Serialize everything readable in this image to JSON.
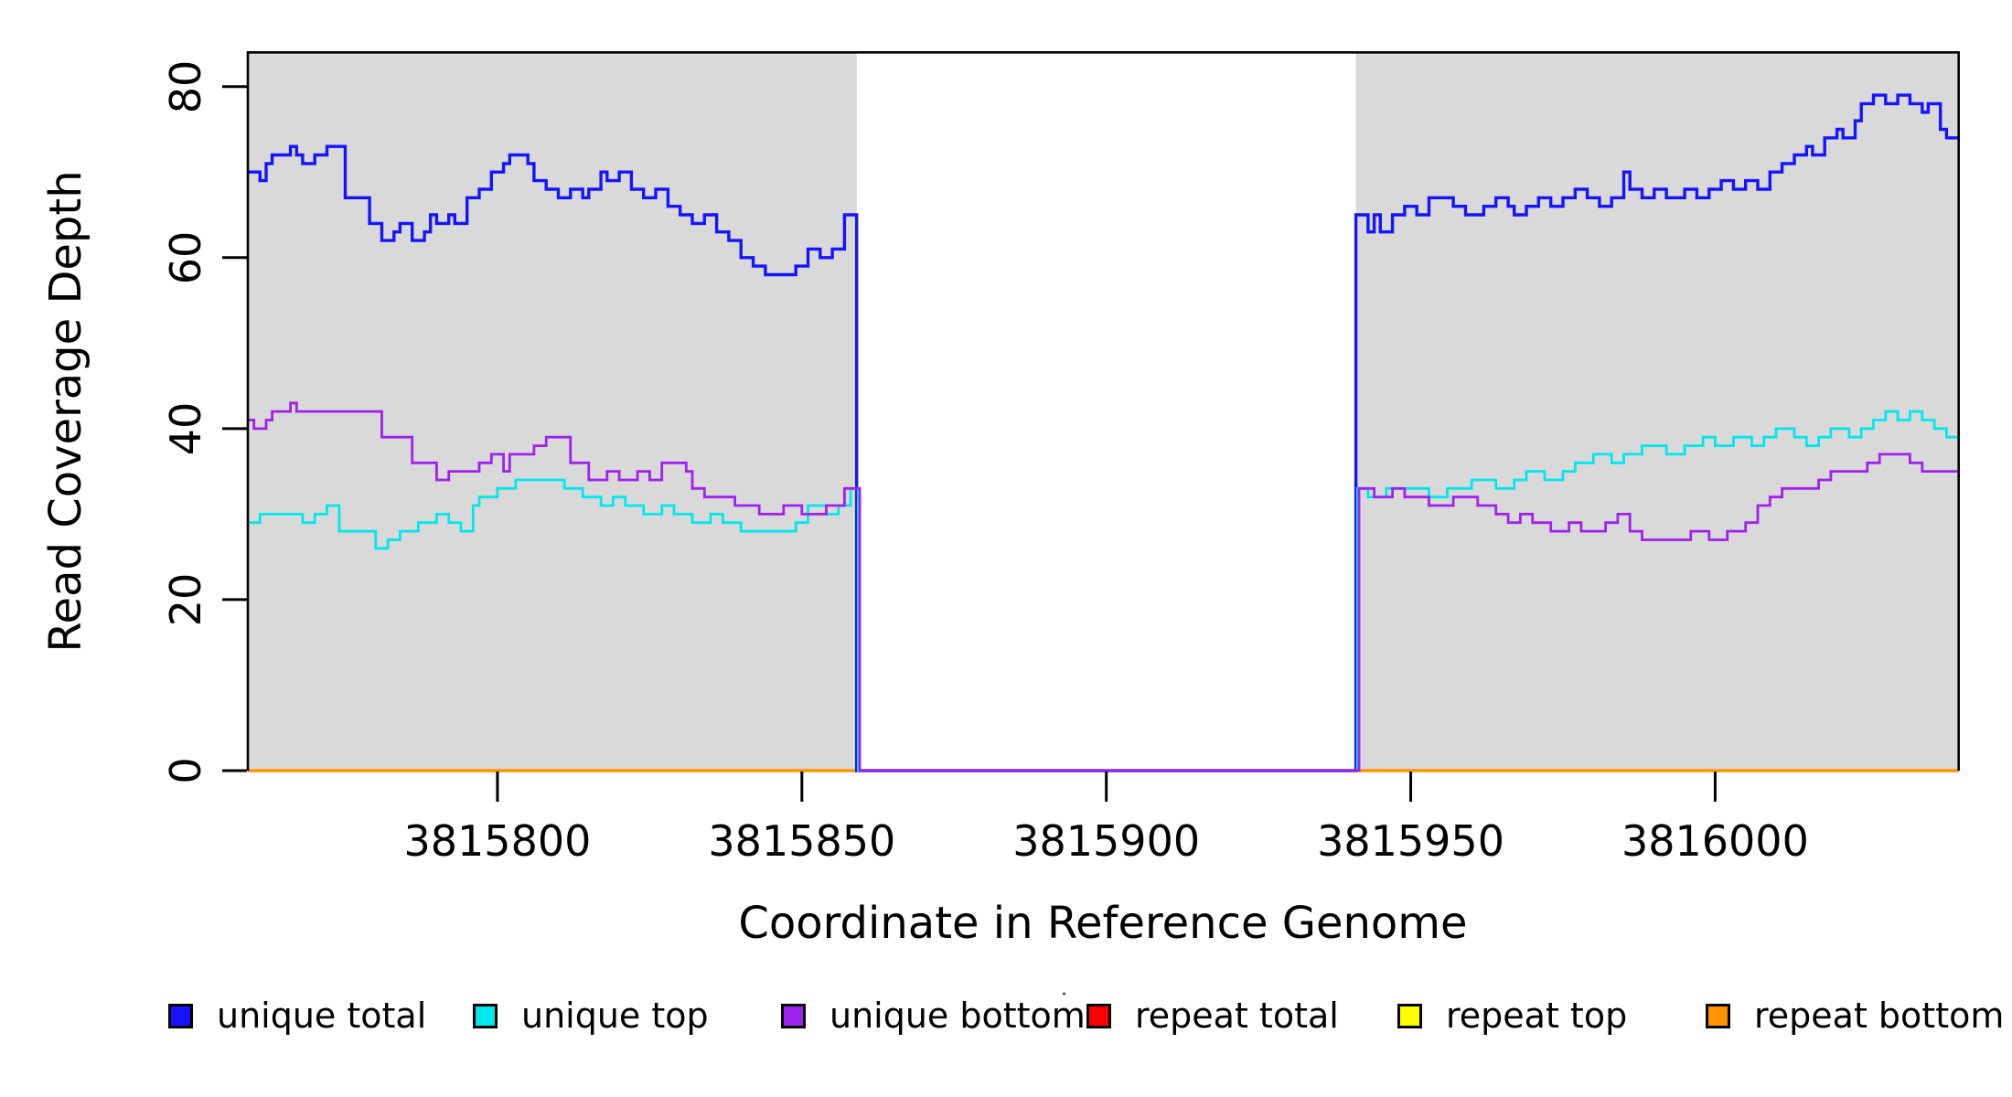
{
  "chart_data": {
    "type": "line",
    "title": "",
    "xlabel": "Coordinate in Reference Genome",
    "ylabel": "Read Coverage Depth",
    "xlim": [
      3815759,
      3816040
    ],
    "ylim": [
      0,
      84
    ],
    "xticks": [
      3815800,
      3815850,
      3815900,
      3815950,
      3816000
    ],
    "yticks": [
      0,
      20,
      40,
      60,
      80
    ],
    "grid": false,
    "legend_position": "bottom",
    "background_color": "#ffffff",
    "shaded_region_color": "#d9d9d9",
    "shaded_regions": [
      {
        "x0": 3815759,
        "x1": 3815859
      },
      {
        "x0": 3815941,
        "x1": 3816040
      }
    ],
    "gap_region": {
      "x0": 3815859,
      "x1": 3815941,
      "note": "all unique coverage drops to 0"
    },
    "series": [
      {
        "name": "repeat total",
        "color": "#ff0000",
        "width": 2.5,
        "steps": [
          [
            3815759,
            0
          ]
        ]
      },
      {
        "name": "repeat top",
        "color": "#ffff00",
        "width": 2.5,
        "steps": [
          [
            3815759,
            0
          ]
        ]
      },
      {
        "name": "repeat bottom",
        "color": "#ff9400",
        "width": 3.4,
        "steps": [
          [
            3815759,
            0
          ]
        ]
      },
      {
        "name": "unique total",
        "color": "#1414ff",
        "width": 3.4,
        "steps": [
          [
            3815759,
            70
          ],
          [
            3815761,
            69
          ],
          [
            3815762,
            71
          ],
          [
            3815763,
            72
          ],
          [
            3815766,
            73
          ],
          [
            3815767,
            72
          ],
          [
            3815768,
            71
          ],
          [
            3815770,
            72
          ],
          [
            3815772,
            73
          ],
          [
            3815775,
            67
          ],
          [
            3815779,
            64
          ],
          [
            3815781,
            62
          ],
          [
            3815783,
            63
          ],
          [
            3815784,
            64
          ],
          [
            3815786,
            62
          ],
          [
            3815788,
            63
          ],
          [
            3815789,
            65
          ],
          [
            3815790,
            64
          ],
          [
            3815792,
            65
          ],
          [
            3815793,
            64
          ],
          [
            3815795,
            67
          ],
          [
            3815797,
            68
          ],
          [
            3815799,
            70
          ],
          [
            3815801,
            71
          ],
          [
            3815802,
            72
          ],
          [
            3815805,
            71
          ],
          [
            3815806,
            69
          ],
          [
            3815808,
            68
          ],
          [
            3815810,
            67
          ],
          [
            3815812,
            68
          ],
          [
            3815814,
            67
          ],
          [
            3815815,
            68
          ],
          [
            3815817,
            70
          ],
          [
            3815818,
            69
          ],
          [
            3815820,
            70
          ],
          [
            3815822,
            68
          ],
          [
            3815824,
            67
          ],
          [
            3815826,
            68
          ],
          [
            3815828,
            66
          ],
          [
            3815830,
            65
          ],
          [
            3815832,
            64
          ],
          [
            3815834,
            65
          ],
          [
            3815836,
            63
          ],
          [
            3815838,
            62
          ],
          [
            3815840,
            60
          ],
          [
            3815842,
            59
          ],
          [
            3815844,
            58
          ],
          [
            3815849,
            59
          ],
          [
            3815851,
            61
          ],
          [
            3815853,
            60
          ],
          [
            3815855,
            61
          ],
          [
            3815857,
            65
          ],
          [
            3815859,
            0
          ],
          [
            3815941,
            65
          ],
          [
            3815943,
            63
          ],
          [
            3815944,
            65
          ],
          [
            3815945,
            63
          ],
          [
            3815947,
            65
          ],
          [
            3815949,
            66
          ],
          [
            3815951,
            65
          ],
          [
            3815953,
            67
          ],
          [
            3815957,
            66
          ],
          [
            3815959,
            65
          ],
          [
            3815962,
            66
          ],
          [
            3815964,
            67
          ],
          [
            3815966,
            66
          ],
          [
            3815967,
            65
          ],
          [
            3815969,
            66
          ],
          [
            3815971,
            67
          ],
          [
            3815973,
            66
          ],
          [
            3815975,
            67
          ],
          [
            3815977,
            68
          ],
          [
            3815979,
            67
          ],
          [
            3815981,
            66
          ],
          [
            3815983,
            67
          ],
          [
            3815985,
            70
          ],
          [
            3815986,
            68
          ],
          [
            3815988,
            67
          ],
          [
            3815990,
            68
          ],
          [
            3815992,
            67
          ],
          [
            3815995,
            68
          ],
          [
            3815997,
            67
          ],
          [
            3815999,
            68
          ],
          [
            3816001,
            69
          ],
          [
            3816003,
            68
          ],
          [
            3816005,
            69
          ],
          [
            3816007,
            68
          ],
          [
            3816009,
            70
          ],
          [
            3816011,
            71
          ],
          [
            3816013,
            72
          ],
          [
            3816015,
            73
          ],
          [
            3816016,
            72
          ],
          [
            3816018,
            74
          ],
          [
            3816020,
            75
          ],
          [
            3816021,
            74
          ],
          [
            3816023,
            76
          ],
          [
            3816024,
            78
          ],
          [
            3816026,
            79
          ],
          [
            3816028,
            78
          ],
          [
            3816030,
            79
          ],
          [
            3816032,
            78
          ],
          [
            3816034,
            77
          ],
          [
            3816035,
            78
          ],
          [
            3816037,
            75
          ],
          [
            3816038,
            74
          ]
        ]
      },
      {
        "name": "unique top",
        "color": "#00e8ee",
        "width": 2.8,
        "steps": [
          [
            3815759,
            29
          ],
          [
            3815761,
            30
          ],
          [
            3815768,
            29
          ],
          [
            3815770,
            30
          ],
          [
            3815772,
            31
          ],
          [
            3815774,
            28
          ],
          [
            3815780,
            26
          ],
          [
            3815782,
            27
          ],
          [
            3815784,
            28
          ],
          [
            3815787,
            29
          ],
          [
            3815790,
            30
          ],
          [
            3815792,
            29
          ],
          [
            3815794,
            28
          ],
          [
            3815796,
            31
          ],
          [
            3815797,
            32
          ],
          [
            3815800,
            33
          ],
          [
            3815803,
            34
          ],
          [
            3815808,
            34
          ],
          [
            3815811,
            33
          ],
          [
            3815814,
            32
          ],
          [
            3815817,
            31
          ],
          [
            3815819,
            32
          ],
          [
            3815821,
            31
          ],
          [
            3815824,
            30
          ],
          [
            3815827,
            31
          ],
          [
            3815829,
            30
          ],
          [
            3815832,
            29
          ],
          [
            3815835,
            30
          ],
          [
            3815837,
            29
          ],
          [
            3815840,
            28
          ],
          [
            3815847,
            28
          ],
          [
            3815849,
            29
          ],
          [
            3815851,
            31
          ],
          [
            3815854,
            30
          ],
          [
            3815856,
            31
          ],
          [
            3815858,
            33
          ],
          [
            3815859.25,
            0
          ],
          [
            3815941.25,
            33
          ],
          [
            3815943,
            32
          ],
          [
            3815946,
            33
          ],
          [
            3815950,
            33
          ],
          [
            3815953,
            32
          ],
          [
            3815956,
            33
          ],
          [
            3815960,
            34
          ],
          [
            3815964,
            33
          ],
          [
            3815967,
            34
          ],
          [
            3815969,
            35
          ],
          [
            3815972,
            34
          ],
          [
            3815975,
            35
          ],
          [
            3815977,
            36
          ],
          [
            3815980,
            37
          ],
          [
            3815983,
            36
          ],
          [
            3815985,
            37
          ],
          [
            3815988,
            38
          ],
          [
            3815992,
            37
          ],
          [
            3815995,
            38
          ],
          [
            3815998,
            39
          ],
          [
            3816000,
            38
          ],
          [
            3816003,
            39
          ],
          [
            3816006,
            38
          ],
          [
            3816008,
            39
          ],
          [
            3816010,
            40
          ],
          [
            3816013,
            39
          ],
          [
            3816015,
            38
          ],
          [
            3816017,
            39
          ],
          [
            3816019,
            40
          ],
          [
            3816022,
            39
          ],
          [
            3816024,
            40
          ],
          [
            3816026,
            41
          ],
          [
            3816028,
            42
          ],
          [
            3816030,
            41
          ],
          [
            3816032,
            42
          ],
          [
            3816034,
            41
          ],
          [
            3816036,
            40
          ],
          [
            3816038,
            39
          ]
        ]
      },
      {
        "name": "unique bottom",
        "color": "#a020f0",
        "width": 2.8,
        "steps": [
          [
            3815759,
            41
          ],
          [
            3815760,
            40
          ],
          [
            3815762,
            41
          ],
          [
            3815763,
            42
          ],
          [
            3815766,
            43
          ],
          [
            3815767,
            42
          ],
          [
            3815781,
            39
          ],
          [
            3815786,
            36
          ],
          [
            3815790,
            34
          ],
          [
            3815792,
            35
          ],
          [
            3815797,
            36
          ],
          [
            3815799,
            37
          ],
          [
            3815801,
            35
          ],
          [
            3815802,
            37
          ],
          [
            3815806,
            38
          ],
          [
            3815808,
            39
          ],
          [
            3815812,
            36
          ],
          [
            3815815,
            34
          ],
          [
            3815818,
            35
          ],
          [
            3815820,
            34
          ],
          [
            3815823,
            35
          ],
          [
            3815825,
            34
          ],
          [
            3815827,
            36
          ],
          [
            3815831,
            35
          ],
          [
            3815832,
            33
          ],
          [
            3815834,
            32
          ],
          [
            3815837,
            32
          ],
          [
            3815839,
            31
          ],
          [
            3815843,
            30
          ],
          [
            3815847,
            31
          ],
          [
            3815850,
            30
          ],
          [
            3815854,
            31
          ],
          [
            3815857,
            33
          ],
          [
            3815859.5,
            0
          ],
          [
            3815941.5,
            33
          ],
          [
            3815944,
            32
          ],
          [
            3815947,
            33
          ],
          [
            3815949,
            32
          ],
          [
            3815953,
            31
          ],
          [
            3815957,
            32
          ],
          [
            3815961,
            31
          ],
          [
            3815964,
            30
          ],
          [
            3815966,
            29
          ],
          [
            3815968,
            30
          ],
          [
            3815970,
            29
          ],
          [
            3815973,
            28
          ],
          [
            3815976,
            29
          ],
          [
            3815978,
            28
          ],
          [
            3815982,
            29
          ],
          [
            3815984,
            30
          ],
          [
            3815986,
            28
          ],
          [
            3815988,
            27
          ],
          [
            3815994,
            27
          ],
          [
            3815996,
            28
          ],
          [
            3815999,
            27
          ],
          [
            3816002,
            28
          ],
          [
            3816005,
            29
          ],
          [
            3816007,
            31
          ],
          [
            3816009,
            32
          ],
          [
            3816011,
            33
          ],
          [
            3816014,
            33
          ],
          [
            3816017,
            34
          ],
          [
            3816019,
            35
          ],
          [
            3816022,
            35
          ],
          [
            3816025,
            36
          ],
          [
            3816027,
            37
          ],
          [
            3816030,
            37
          ],
          [
            3816032,
            36
          ],
          [
            3816034,
            35
          ],
          [
            3816038,
            35
          ]
        ]
      }
    ]
  },
  "legend": {
    "items": [
      {
        "label": "unique total",
        "color": "#1414ff"
      },
      {
        "label": "unique top",
        "color": "#00e8ee"
      },
      {
        "label": "unique bottom",
        "color": "#a020f0"
      },
      {
        "label": "repeat total",
        "color": "#ff0000"
      },
      {
        "label": "repeat top",
        "color": "#ffff00"
      },
      {
        "label": "repeat bottom",
        "color": "#ff9400"
      }
    ]
  },
  "stray_mark": "·"
}
